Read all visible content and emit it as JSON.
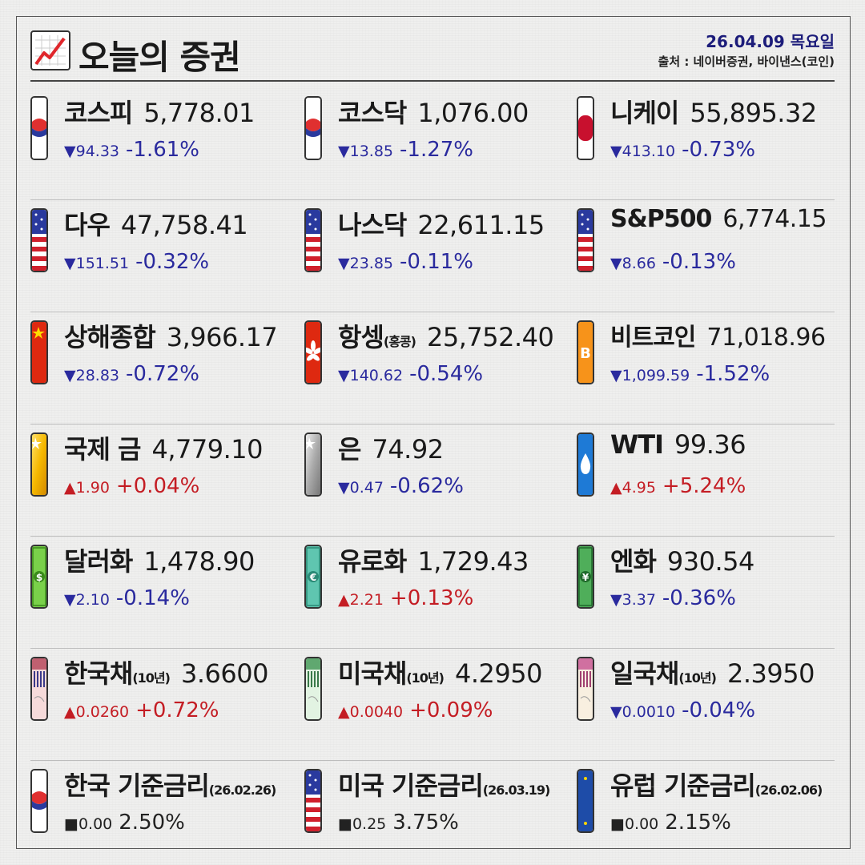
{
  "header": {
    "title": "오늘의 증권",
    "date": "26.04.09 목요일",
    "source": "출처 : 네이버증권, 바이낸스(코인)"
  },
  "rows": [
    [
      {
        "name": "코스피",
        "sub": "",
        "value": "5,778.01",
        "arrow": "▼",
        "delta": "94.33",
        "pct": "-1.61%",
        "dir": "down",
        "badge": "kr-flag"
      },
      {
        "name": "코스닥",
        "sub": "",
        "value": "1,076.00",
        "arrow": "▼",
        "delta": "13.85",
        "pct": "-1.27%",
        "dir": "down",
        "badge": "kr-flag"
      },
      {
        "name": "니케이",
        "sub": "",
        "value": "55,895.32",
        "arrow": "▼",
        "delta": "413.10",
        "pct": "-0.73%",
        "dir": "down",
        "badge": "jp-flag"
      }
    ],
    [
      {
        "name": "다우",
        "sub": "",
        "value": "47,758.41",
        "arrow": "▼",
        "delta": "151.51",
        "pct": "-0.32%",
        "dir": "down",
        "badge": "us-flag"
      },
      {
        "name": "나스닥",
        "sub": "",
        "value": "22,611.15",
        "arrow": "▼",
        "delta": "23.85",
        "pct": "-0.11%",
        "dir": "down",
        "badge": "us-flag"
      },
      {
        "name": "S&P500",
        "sub": "",
        "value": "6,774.15",
        "arrow": "▼",
        "delta": "8.66",
        "pct": "-0.13%",
        "dir": "down",
        "badge": "us-flag"
      }
    ],
    [
      {
        "name": "상해종합",
        "sub": "",
        "value": "3,966.17",
        "arrow": "▼",
        "delta": "28.83",
        "pct": "-0.72%",
        "dir": "down",
        "badge": "cn-flag"
      },
      {
        "name": "항셍",
        "sub": "(홍콩)",
        "value": "25,752.40",
        "arrow": "▼",
        "delta": "140.62",
        "pct": "-0.54%",
        "dir": "down",
        "badge": "hk-flag"
      },
      {
        "name": "비트코인",
        "sub": "",
        "value": "71,018.96",
        "arrow": "▼",
        "delta": "1,099.59",
        "pct": "-1.52%",
        "dir": "down",
        "badge": "bitcoin"
      }
    ],
    [
      {
        "name": "국제 금",
        "sub": "",
        "value": "4,779.10",
        "arrow": "▲",
        "delta": "1.90",
        "pct": "+0.04%",
        "dir": "up",
        "badge": "gold"
      },
      {
        "name": "은",
        "sub": "",
        "value": "74.92",
        "arrow": "▼",
        "delta": "0.47",
        "pct": "-0.62%",
        "dir": "down",
        "badge": "silver"
      },
      {
        "name": "WTI",
        "sub": "",
        "value": "99.36",
        "arrow": "▲",
        "delta": "4.95",
        "pct": "+5.24%",
        "dir": "up",
        "badge": "oil"
      }
    ],
    [
      {
        "name": "달러화",
        "sub": "",
        "value": "1,478.90",
        "arrow": "▼",
        "delta": "2.10",
        "pct": "-0.14%",
        "dir": "down",
        "badge": "dollar"
      },
      {
        "name": "유로화",
        "sub": "",
        "value": "1,729.43",
        "arrow": "▲",
        "delta": "2.21",
        "pct": "+0.13%",
        "dir": "up",
        "badge": "euro"
      },
      {
        "name": "엔화",
        "sub": "",
        "value": "930.54",
        "arrow": "▼",
        "delta": "3.37",
        "pct": "-0.36%",
        "dir": "down",
        "badge": "yen"
      }
    ],
    [
      {
        "name": "한국채",
        "sub": "(10년)",
        "value": "3.6600",
        "arrow": "▲",
        "delta": "0.0260",
        "pct": "+0.72%",
        "dir": "up",
        "badge": "bond-kr"
      },
      {
        "name": "미국채",
        "sub": "(10년)",
        "value": "4.2950",
        "arrow": "▲",
        "delta": "0.0040",
        "pct": "+0.09%",
        "dir": "up",
        "badge": "bond-us"
      },
      {
        "name": "일국채",
        "sub": "(10년)",
        "value": "2.3950",
        "arrow": "▼",
        "delta": "0.0010",
        "pct": "-0.04%",
        "dir": "down",
        "badge": "bond-jp"
      }
    ],
    [
      {
        "name": "한국 기준금리",
        "sub": "(26.02.26)",
        "value": "",
        "arrow": "■",
        "delta": "0.00",
        "pct": "2.50%",
        "dir": "flat",
        "badge": "kr-flag"
      },
      {
        "name": "미국 기준금리",
        "sub": "(26.03.19)",
        "value": "",
        "arrow": "■",
        "delta": "0.25",
        "pct": "3.75%",
        "dir": "flat",
        "badge": "us-flag"
      },
      {
        "name": "유럽 기준금리",
        "sub": "(26.02.06)",
        "value": "",
        "arrow": "■",
        "delta": "0.00",
        "pct": "2.15%",
        "dir": "flat",
        "badge": "eu-flag"
      }
    ]
  ]
}
